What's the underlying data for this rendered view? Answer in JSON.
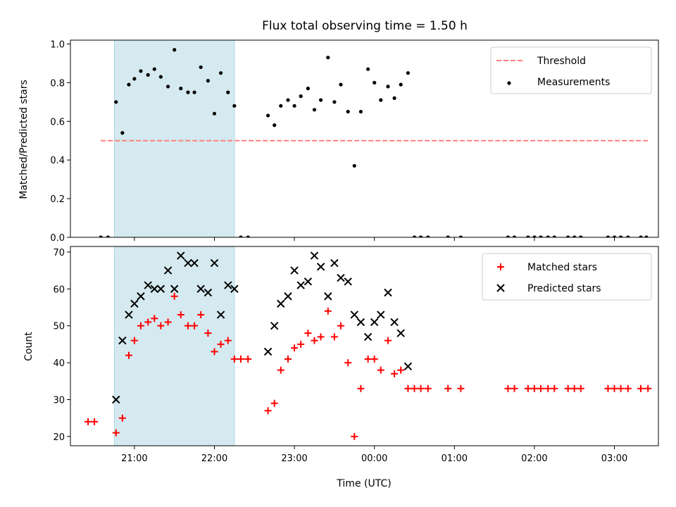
{
  "title": "Flux total observing time = 1.50 h",
  "colors": {
    "shade": "#d4eaf0",
    "shade_edge": "#a9d8e4",
    "threshold": "#ff7f7f",
    "matched": "#ff0000",
    "predicted": "#000000",
    "points": "#000000"
  },
  "chart_data": [
    {
      "type": "scatter",
      "ylabel": "Matched/Predicted stars",
      "xlim": [
        -0.8,
        6.55
      ],
      "ylim": [
        0,
        1.02
      ],
      "yticks": [
        0.0,
        0.2,
        0.4,
        0.6,
        0.8,
        1.0
      ],
      "ytick_labels": [
        "0.0",
        "0.2",
        "0.4",
        "0.6",
        "0.8",
        "1.0"
      ],
      "legend_position": "upper right",
      "shaded_span": [
        -0.25,
        1.25
      ],
      "threshold": {
        "name": "Threshold",
        "y": 0.5,
        "x_range": [
          -0.42,
          6.42
        ],
        "style": "dashed"
      },
      "series": [
        {
          "name": "Measurements",
          "marker": "dot",
          "points": [
            [
              -0.42,
              0.0
            ],
            [
              -0.33,
              0.0
            ],
            [
              -0.23,
              0.7
            ],
            [
              -0.15,
              0.54
            ],
            [
              -0.07,
              0.79
            ],
            [
              0.0,
              0.82
            ],
            [
              0.08,
              0.86
            ],
            [
              0.17,
              0.84
            ],
            [
              0.25,
              0.87
            ],
            [
              0.33,
              0.83
            ],
            [
              0.42,
              0.78
            ],
            [
              0.5,
              0.97
            ],
            [
              0.58,
              0.77
            ],
            [
              0.67,
              0.75
            ],
            [
              0.75,
              0.75
            ],
            [
              0.83,
              0.88
            ],
            [
              0.92,
              0.81
            ],
            [
              1.0,
              0.64
            ],
            [
              1.08,
              0.85
            ],
            [
              1.17,
              0.75
            ],
            [
              1.25,
              0.68
            ],
            [
              1.33,
              0.0
            ],
            [
              1.42,
              0.0
            ],
            [
              1.67,
              0.63
            ],
            [
              1.75,
              0.58
            ],
            [
              1.83,
              0.68
            ],
            [
              1.92,
              0.71
            ],
            [
              2.0,
              0.68
            ],
            [
              2.08,
              0.73
            ],
            [
              2.17,
              0.77
            ],
            [
              2.25,
              0.66
            ],
            [
              2.33,
              0.71
            ],
            [
              2.42,
              0.93
            ],
            [
              2.5,
              0.7
            ],
            [
              2.58,
              0.79
            ],
            [
              2.67,
              0.65
            ],
            [
              2.75,
              0.37
            ],
            [
              2.83,
              0.65
            ],
            [
              2.92,
              0.87
            ],
            [
              3.0,
              0.8
            ],
            [
              3.08,
              0.71
            ],
            [
              3.17,
              0.78
            ],
            [
              3.25,
              0.72
            ],
            [
              3.33,
              0.79
            ],
            [
              3.42,
              0.85
            ],
            [
              3.5,
              0.0
            ],
            [
              3.58,
              0.0
            ],
            [
              3.67,
              0.0
            ],
            [
              3.92,
              0.0
            ],
            [
              4.08,
              0.0
            ],
            [
              4.67,
              0.0
            ],
            [
              4.75,
              0.0
            ],
            [
              4.92,
              0.0
            ],
            [
              5.0,
              0.0
            ],
            [
              5.08,
              0.0
            ],
            [
              5.17,
              0.0
            ],
            [
              5.25,
              0.0
            ],
            [
              5.42,
              0.0
            ],
            [
              5.5,
              0.0
            ],
            [
              5.58,
              0.0
            ],
            [
              5.92,
              0.0
            ],
            [
              6.0,
              0.0
            ],
            [
              6.08,
              0.0
            ],
            [
              6.17,
              0.0
            ],
            [
              6.33,
              0.0
            ],
            [
              6.4,
              0.0
            ]
          ]
        }
      ]
    },
    {
      "type": "scatter",
      "xlabel": "Time (UTC)",
      "ylabel": "Count",
      "xlim": [
        -0.8,
        6.55
      ],
      "ylim": [
        17.5,
        71.5
      ],
      "xticks": [
        0,
        1,
        2,
        3,
        4,
        5,
        6
      ],
      "xtick_labels": [
        "21:00",
        "22:00",
        "23:00",
        "00:00",
        "01:00",
        "02:00",
        "03:00"
      ],
      "yticks": [
        20,
        30,
        40,
        50,
        60,
        70
      ],
      "ytick_labels": [
        "20",
        "30",
        "40",
        "50",
        "60",
        "70"
      ],
      "legend_position": "upper right",
      "shaded_span": [
        -0.25,
        1.25
      ],
      "series": [
        {
          "name": "Matched stars",
          "marker": "plus",
          "points": [
            [
              -0.58,
              24
            ],
            [
              -0.5,
              24
            ],
            [
              -0.23,
              21
            ],
            [
              -0.15,
              25
            ],
            [
              -0.07,
              42
            ],
            [
              0.0,
              46
            ],
            [
              0.08,
              50
            ],
            [
              0.17,
              51
            ],
            [
              0.25,
              52
            ],
            [
              0.33,
              50
            ],
            [
              0.42,
              51
            ],
            [
              0.5,
              58
            ],
            [
              0.58,
              53
            ],
            [
              0.67,
              50
            ],
            [
              0.75,
              50
            ],
            [
              0.83,
              53
            ],
            [
              0.92,
              48
            ],
            [
              1.0,
              43
            ],
            [
              1.08,
              45
            ],
            [
              1.17,
              46
            ],
            [
              1.25,
              41
            ],
            [
              1.33,
              41
            ],
            [
              1.42,
              41
            ],
            [
              1.67,
              27
            ],
            [
              1.75,
              29
            ],
            [
              1.83,
              38
            ],
            [
              1.92,
              41
            ],
            [
              2.0,
              44
            ],
            [
              2.08,
              45
            ],
            [
              2.17,
              48
            ],
            [
              2.25,
              46
            ],
            [
              2.33,
              47
            ],
            [
              2.42,
              54
            ],
            [
              2.5,
              47
            ],
            [
              2.58,
              50
            ],
            [
              2.67,
              40
            ],
            [
              2.75,
              20
            ],
            [
              2.83,
              33
            ],
            [
              2.92,
              41
            ],
            [
              3.0,
              41
            ],
            [
              3.08,
              38
            ],
            [
              3.17,
              46
            ],
            [
              3.25,
              37
            ],
            [
              3.33,
              38
            ],
            [
              3.42,
              33
            ],
            [
              3.5,
              33
            ],
            [
              3.58,
              33
            ],
            [
              3.67,
              33
            ],
            [
              3.92,
              33
            ],
            [
              4.08,
              33
            ],
            [
              4.67,
              33
            ],
            [
              4.75,
              33
            ],
            [
              4.92,
              33
            ],
            [
              5.0,
              33
            ],
            [
              5.08,
              33
            ],
            [
              5.17,
              33
            ],
            [
              5.25,
              33
            ],
            [
              5.42,
              33
            ],
            [
              5.5,
              33
            ],
            [
              5.58,
              33
            ],
            [
              5.92,
              33
            ],
            [
              6.0,
              33
            ],
            [
              6.08,
              33
            ],
            [
              6.17,
              33
            ],
            [
              6.33,
              33
            ],
            [
              6.42,
              33
            ]
          ]
        },
        {
          "name": "Predicted stars",
          "marker": "x",
          "points": [
            [
              -0.23,
              30
            ],
            [
              -0.15,
              46
            ],
            [
              -0.07,
              53
            ],
            [
              0.0,
              56
            ],
            [
              0.08,
              58
            ],
            [
              0.17,
              61
            ],
            [
              0.25,
              60
            ],
            [
              0.33,
              60
            ],
            [
              0.42,
              65
            ],
            [
              0.5,
              60
            ],
            [
              0.58,
              69
            ],
            [
              0.67,
              67
            ],
            [
              0.75,
              67
            ],
            [
              0.83,
              60
            ],
            [
              0.92,
              59
            ],
            [
              1.0,
              67
            ],
            [
              1.08,
              53
            ],
            [
              1.17,
              61
            ],
            [
              1.25,
              60
            ],
            [
              1.67,
              43
            ],
            [
              1.75,
              50
            ],
            [
              1.83,
              56
            ],
            [
              1.92,
              58
            ],
            [
              2.0,
              65
            ],
            [
              2.08,
              61
            ],
            [
              2.17,
              62
            ],
            [
              2.25,
              69
            ],
            [
              2.33,
              66
            ],
            [
              2.42,
              58
            ],
            [
              2.5,
              67
            ],
            [
              2.58,
              63
            ],
            [
              2.67,
              62
            ],
            [
              2.75,
              53
            ],
            [
              2.83,
              51
            ],
            [
              2.92,
              47
            ],
            [
              3.0,
              51
            ],
            [
              3.08,
              53
            ],
            [
              3.17,
              59
            ],
            [
              3.25,
              51
            ],
            [
              3.33,
              48
            ],
            [
              3.42,
              39
            ]
          ]
        }
      ]
    }
  ]
}
